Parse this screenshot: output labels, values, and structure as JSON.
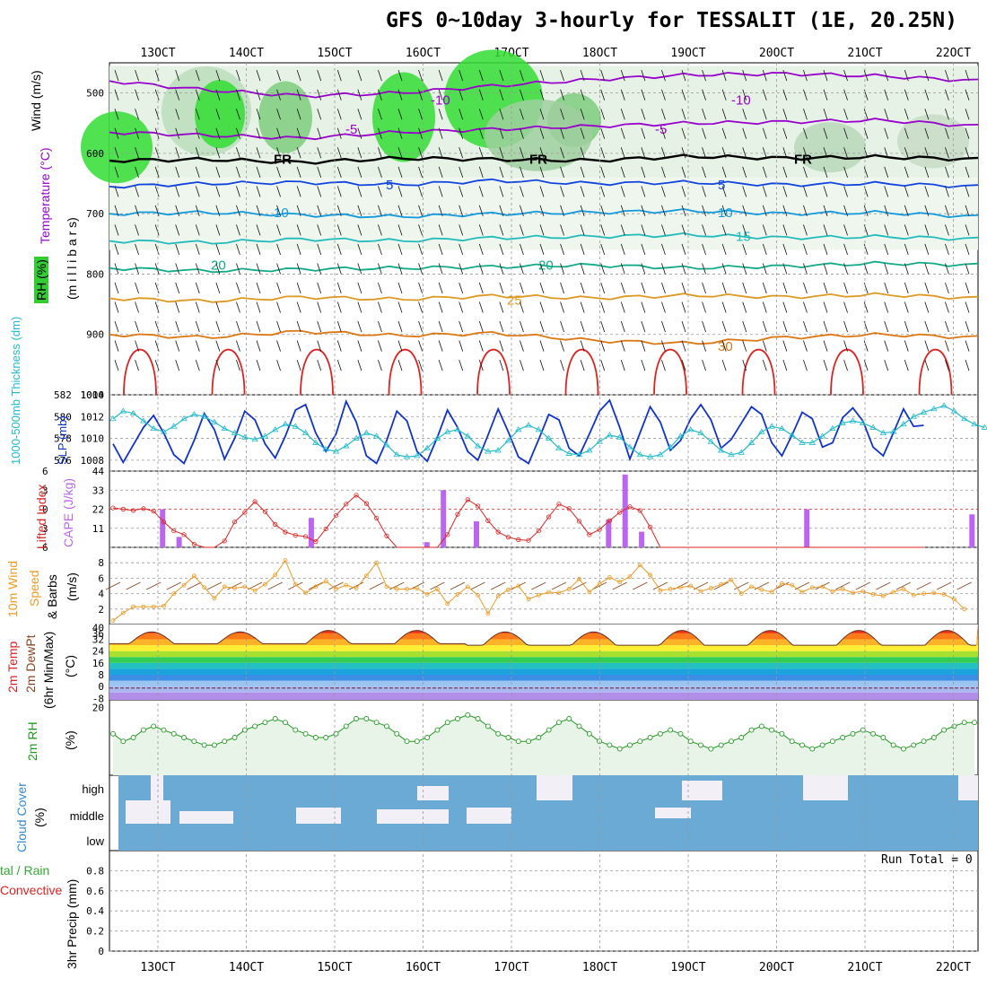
{
  "title": "GFS 0~10day 3-hourly for TESSALIT (1E, 20.25N)",
  "date_ticks": [
    "13OCT",
    "14OCT",
    "15OCT",
    "16OCT",
    "17OCT",
    "18OCT",
    "19OCT",
    "20OCT",
    "21OCT",
    "22OCT"
  ],
  "colors": {
    "grid": "#999999",
    "rh_green": "#33cc33",
    "temp_purple": "#9900cc",
    "slp_blue": "#1133cc",
    "thick_cyan": "#22bbcc",
    "cape_purple": "#bb66ee",
    "li_red": "#dd2222",
    "wind_orange": "#ee9922",
    "rh2m_green": "#229922",
    "cloud_blue": "#6aaad4",
    "cloud_white": "#f2eff6"
  },
  "panel_labels": {
    "sounding": {
      "wind": "Wind (m/s)",
      "temp": "Temperature (°C)",
      "rh": "RH (%)",
      "pressure": "(m i l l i b a r s)"
    },
    "slp": {
      "thickness": "1000-500mb Thickness (dm)",
      "slp": "SLP (mb)"
    },
    "cape": {
      "li": "Lifted Index",
      "cape": "CAPE (J/kg)"
    },
    "wind10": {
      "wind": "10m Wind",
      "speed": "Speed",
      "barbs": "& Barbs",
      "unit": "(m/s)"
    },
    "temp2m": {
      "temp": "2m Temp",
      "dew": "2m DewPt",
      "minmax": "(6hr Min/Max)",
      "unit": "(°C)"
    },
    "rh2m": {
      "rh": "2m RH",
      "unit": "(%)"
    },
    "cloud": {
      "label": "Cloud Cover",
      "unit": "(%)",
      "levels": [
        "high",
        "middle",
        "low"
      ]
    },
    "precip": {
      "label": "3hr Precip (mm)",
      "total": "tal / Rain",
      "convective": "Convective",
      "run_total": "Run Total = 0"
    }
  },
  "chart_data": [
    {
      "type": "contour",
      "panel": "sounding",
      "yaxis": {
        "label": "millibars",
        "ticks": [
          500,
          600,
          700,
          800,
          900,
          1000
        ],
        "range": [
          450,
          1000
        ]
      },
      "isotherm_labels": [
        {
          "label": "-10",
          "p": 512
        },
        {
          "label": "-5",
          "p": 560
        },
        {
          "label": "FR",
          "p": 610
        },
        {
          "label": "5",
          "p": 652
        },
        {
          "label": "10",
          "p": 698
        },
        {
          "label": "15",
          "p": 738
        },
        {
          "label": "20",
          "p": 785
        },
        {
          "label": "25",
          "p": 843
        },
        {
          "label": "30",
          "p": 920
        }
      ],
      "isotherm_colors": {
        "-10": "#9900cc",
        "-5": "#9900cc",
        "FR": "#000000",
        "5": "#1144dd",
        "10": "#1199dd",
        "15": "#22bbbb",
        "20": "#11aa88",
        "25": "#dd9922",
        "30": "#dd7711"
      },
      "isotherm_p": {
        "-10": [
          480,
          495,
          505,
          500,
          488,
          478,
          470,
          468,
          472,
          480
        ],
        "-5": [
          565,
          570,
          575,
          565,
          560,
          555,
          550,
          548,
          545,
          555
        ],
        "FR": [
          612,
          610,
          615,
          608,
          610,
          612,
          605,
          608,
          606,
          610
        ],
        "5": [
          655,
          650,
          648,
          652,
          645,
          650,
          648,
          652,
          650,
          655
        ],
        "10": [
          700,
          698,
          702,
          705,
          700,
          698,
          695,
          700,
          698,
          705
        ],
        "15": [
          745,
          748,
          742,
          745,
          740,
          738,
          735,
          740,
          738,
          742
        ],
        "20": [
          790,
          795,
          792,
          790,
          788,
          785,
          790,
          787,
          782,
          785
        ],
        "25": [
          840,
          845,
          838,
          842,
          836,
          840,
          835,
          838,
          834,
          840
        ],
        "30": [
          900,
          905,
          895,
          902,
          898,
          910,
          915,
          905,
          900,
          905
        ]
      }
    },
    {
      "type": "line",
      "panel": "slp_thickness",
      "y_left": {
        "label": "1000-500mb Thickness (dm)",
        "ticks": [
          576,
          578,
          580,
          582
        ],
        "range": [
          575,
          582
        ]
      },
      "y_right": {
        "label": "SLP (mb)",
        "ticks": [
          1008,
          1010,
          1012,
          1014
        ],
        "range": [
          1007,
          1014
        ]
      },
      "series": [
        {
          "name": "SLP",
          "color": "#1133cc",
          "values": [
            1009.5,
            1007.8,
            1009.4,
            1011.0,
            1012.1,
            1010.5,
            1008.5,
            1007.7,
            1009.8,
            1012.3,
            1010.8,
            1008.1,
            1010.0,
            1012.5,
            1011.7,
            1009.5,
            1008.2,
            1010.2,
            1012.6,
            1013.1,
            1010.5,
            1008.8,
            1010.4,
            1013.4,
            1011.5,
            1008.4,
            1007.7,
            1009.8,
            1012.5,
            1011.6,
            1008.8,
            1007.9,
            1010.1,
            1012.6,
            1011.0,
            1008.8,
            1008.0,
            1010.3,
            1012.7,
            1010.6,
            1008.3,
            1007.7,
            1009.9,
            1012.2,
            1011.7,
            1009.1,
            1008.4,
            1010.4,
            1012.5,
            1013.5,
            1011.0,
            1008.1,
            1010.5,
            1012.9,
            1011.5,
            1008.9,
            1009.8,
            1011.8,
            1013.1,
            1011.7,
            1009.1,
            1009.9,
            1011.4,
            1012.9,
            1012.2,
            1009.6,
            1008.4,
            1010.3,
            1012.4,
            1011.8,
            1009.2,
            1009.6,
            1011.9,
            1012.8,
            1011.6,
            1009.2,
            1008.4,
            1010.5,
            1012.7,
            1011.1,
            1011.2
          ]
        },
        {
          "name": "Thickness",
          "color": "#22bbcc",
          "values": [
            579.8,
            580.5,
            580.3,
            579.6,
            578.9,
            578.6,
            579.1,
            579.8,
            580.2,
            580.0,
            579.5,
            578.9,
            578.5,
            578.1,
            577.9,
            578.2,
            578.8,
            579.3,
            579.1,
            578.5,
            577.6,
            577.0,
            576.8,
            577.3,
            578.0,
            578.5,
            578.2,
            577.4,
            576.5,
            576.3,
            576.4,
            577.1,
            578.0,
            578.6,
            578.8,
            578.2,
            577.3,
            576.8,
            576.9,
            577.8,
            578.8,
            579.2,
            578.8,
            578.0,
            577.1,
            576.6,
            576.5,
            576.9,
            577.7,
            578.3,
            578.1,
            577.2,
            576.5,
            576.3,
            576.5,
            577.2,
            578.2,
            578.8,
            578.5,
            577.7,
            576.9,
            576.5,
            576.7,
            577.6,
            578.6,
            579.1,
            578.9,
            578.3,
            577.6,
            577.6,
            578.2,
            578.9,
            579.4,
            579.6,
            579.4,
            579.0,
            578.5,
            578.6,
            579.3,
            580.0,
            580.4,
            580.7,
            581.0,
            580.5,
            579.8,
            579.3,
            579.0
          ]
        }
      ]
    },
    {
      "type": "bar_line",
      "panel": "cape_li",
      "y_left": {
        "label": "Lifted Index",
        "ticks": [
          -6,
          -3,
          0,
          3,
          6
        ],
        "range": [
          -6,
          6
        ],
        "inverted": true
      },
      "y_right": {
        "label": "CAPE (J/kg)",
        "ticks": [
          11,
          22,
          33,
          44
        ],
        "range": [
          0,
          44
        ]
      },
      "cape_bars": [
        {
          "i": 3,
          "v": 22
        },
        {
          "i": 4,
          "v": 6
        },
        {
          "i": 12,
          "v": 17
        },
        {
          "i": 19,
          "v": 3
        },
        {
          "i": 20,
          "v": 33
        },
        {
          "i": 22,
          "v": 15
        },
        {
          "i": 30,
          "v": 16
        },
        {
          "i": 31,
          "v": 42
        },
        {
          "i": 32,
          "v": 9
        },
        {
          "i": 42,
          "v": 22
        },
        {
          "i": 52,
          "v": 19
        }
      ],
      "li_values": [
        -0.2,
        0.0,
        0.2,
        -0.1,
        0.3,
        2.0,
        3.4,
        4.0,
        5.5,
        7,
        7,
        5.0,
        2.0,
        0.5,
        -1.2,
        0.4,
        2.4,
        3.6,
        4.1,
        4.3,
        5.1,
        3.1,
        1.0,
        -0.8,
        -2.2,
        -0.9,
        1.4,
        4.2,
        7,
        7,
        7,
        7,
        7,
        4.0,
        0.8,
        -1.5,
        -0.5,
        1.8,
        3.6,
        4.4,
        4.8,
        4.9,
        3.4,
        1.2,
        -0.8,
        -0.1,
        1.9,
        4.0,
        3.2,
        1.8,
        0.5,
        -0.4,
        0.2,
        2.8,
        6.2,
        7,
        7,
        7,
        7,
        7,
        7,
        7,
        7,
        7,
        7,
        7,
        7,
        7,
        7,
        7,
        7,
        7,
        7,
        7,
        7,
        7,
        7,
        7,
        7,
        7,
        7
      ]
    },
    {
      "type": "line",
      "panel": "wind10m",
      "yaxis": {
        "label": "(m/s)",
        "ticks": [
          2,
          4,
          6,
          8
        ],
        "range": [
          0,
          10
        ]
      },
      "values": [
        0.5,
        1.5,
        2.3,
        2.3,
        2.3,
        2.4,
        4.0,
        5.1,
        6.3,
        4.8,
        3.4,
        4.9,
        4.7,
        4.9,
        4.4,
        5.2,
        6.4,
        8.3,
        5.2,
        4.1,
        4.9,
        5.6,
        4.6,
        5.1,
        4.7,
        6.3,
        8.0,
        4.9,
        4.6,
        4.6,
        4.7,
        3.9,
        4.6,
        2.7,
        3.9,
        4.9,
        3.8,
        1.4,
        3.7,
        4.5,
        5.0,
        3.3,
        3.8,
        4.2,
        4.1,
        4.6,
        5.9,
        4.2,
        5.3,
        6.1,
        5.5,
        6.2,
        7.7,
        6.4,
        4.4,
        4.6,
        4.8,
        5.0,
        4.3,
        4.7,
        5.2,
        5.8,
        4.0,
        4.9,
        4.5,
        4.2,
        5.3,
        5.1,
        4.2,
        4.8,
        4.9,
        4.3,
        4.6,
        4.1,
        4.3,
        3.9,
        3.7,
        4.2,
        4.6,
        3.8,
        4.0,
        4.1,
        3.9,
        3.3,
        2.0
      ]
    },
    {
      "type": "area",
      "panel": "temp2m",
      "yaxis": {
        "label": "(°C)",
        "ticks": [
          -8,
          0,
          8,
          16,
          24,
          32,
          36,
          40
        ],
        "range": [
          -9,
          42
        ]
      },
      "temp_max_by_day": [
        37,
        37,
        38,
        38,
        37,
        37,
        38,
        38,
        38,
        38
      ],
      "temp_min_by_day": [
        29,
        29,
        29,
        29,
        28,
        28,
        28,
        28,
        28,
        28
      ],
      "dewpoint_range": [
        -3,
        2
      ]
    },
    {
      "type": "line",
      "panel": "rh2m",
      "yaxis": {
        "label": "(%)",
        "ticks": [
          20
        ],
        "range": [
          2,
          22
        ]
      },
      "values": [
        13,
        11,
        12,
        14,
        15,
        14,
        13,
        12,
        11,
        10,
        10,
        11,
        12,
        14,
        15,
        16,
        17,
        16,
        14,
        13,
        12,
        12,
        13,
        15,
        17,
        17,
        16,
        15,
        13,
        11,
        11,
        12,
        14,
        16,
        17,
        18,
        17,
        15,
        13,
        12,
        11,
        11,
        12,
        14,
        16,
        17,
        15,
        13,
        11,
        10,
        9,
        10,
        11,
        12,
        13,
        14,
        13,
        11,
        10,
        9,
        10,
        11,
        12,
        14,
        15,
        14,
        13,
        11,
        10,
        9,
        10,
        11,
        12,
        13,
        14,
        13,
        12,
        10,
        9,
        10,
        11,
        12,
        14,
        15,
        16,
        16
      ]
    },
    {
      "type": "stacked_blocks",
      "panel": "cloud_cover",
      "levels": [
        "high",
        "middle",
        "low"
      ],
      "description_values": "cloud fractions per 3h step"
    },
    {
      "type": "bar",
      "panel": "precip",
      "yaxis": {
        "label": "3hr Precip (mm)",
        "ticks": [
          0,
          0.2,
          0.4,
          0.6,
          0.8
        ],
        "range": [
          0,
          1
        ]
      },
      "values": [],
      "run_total": 0
    }
  ]
}
